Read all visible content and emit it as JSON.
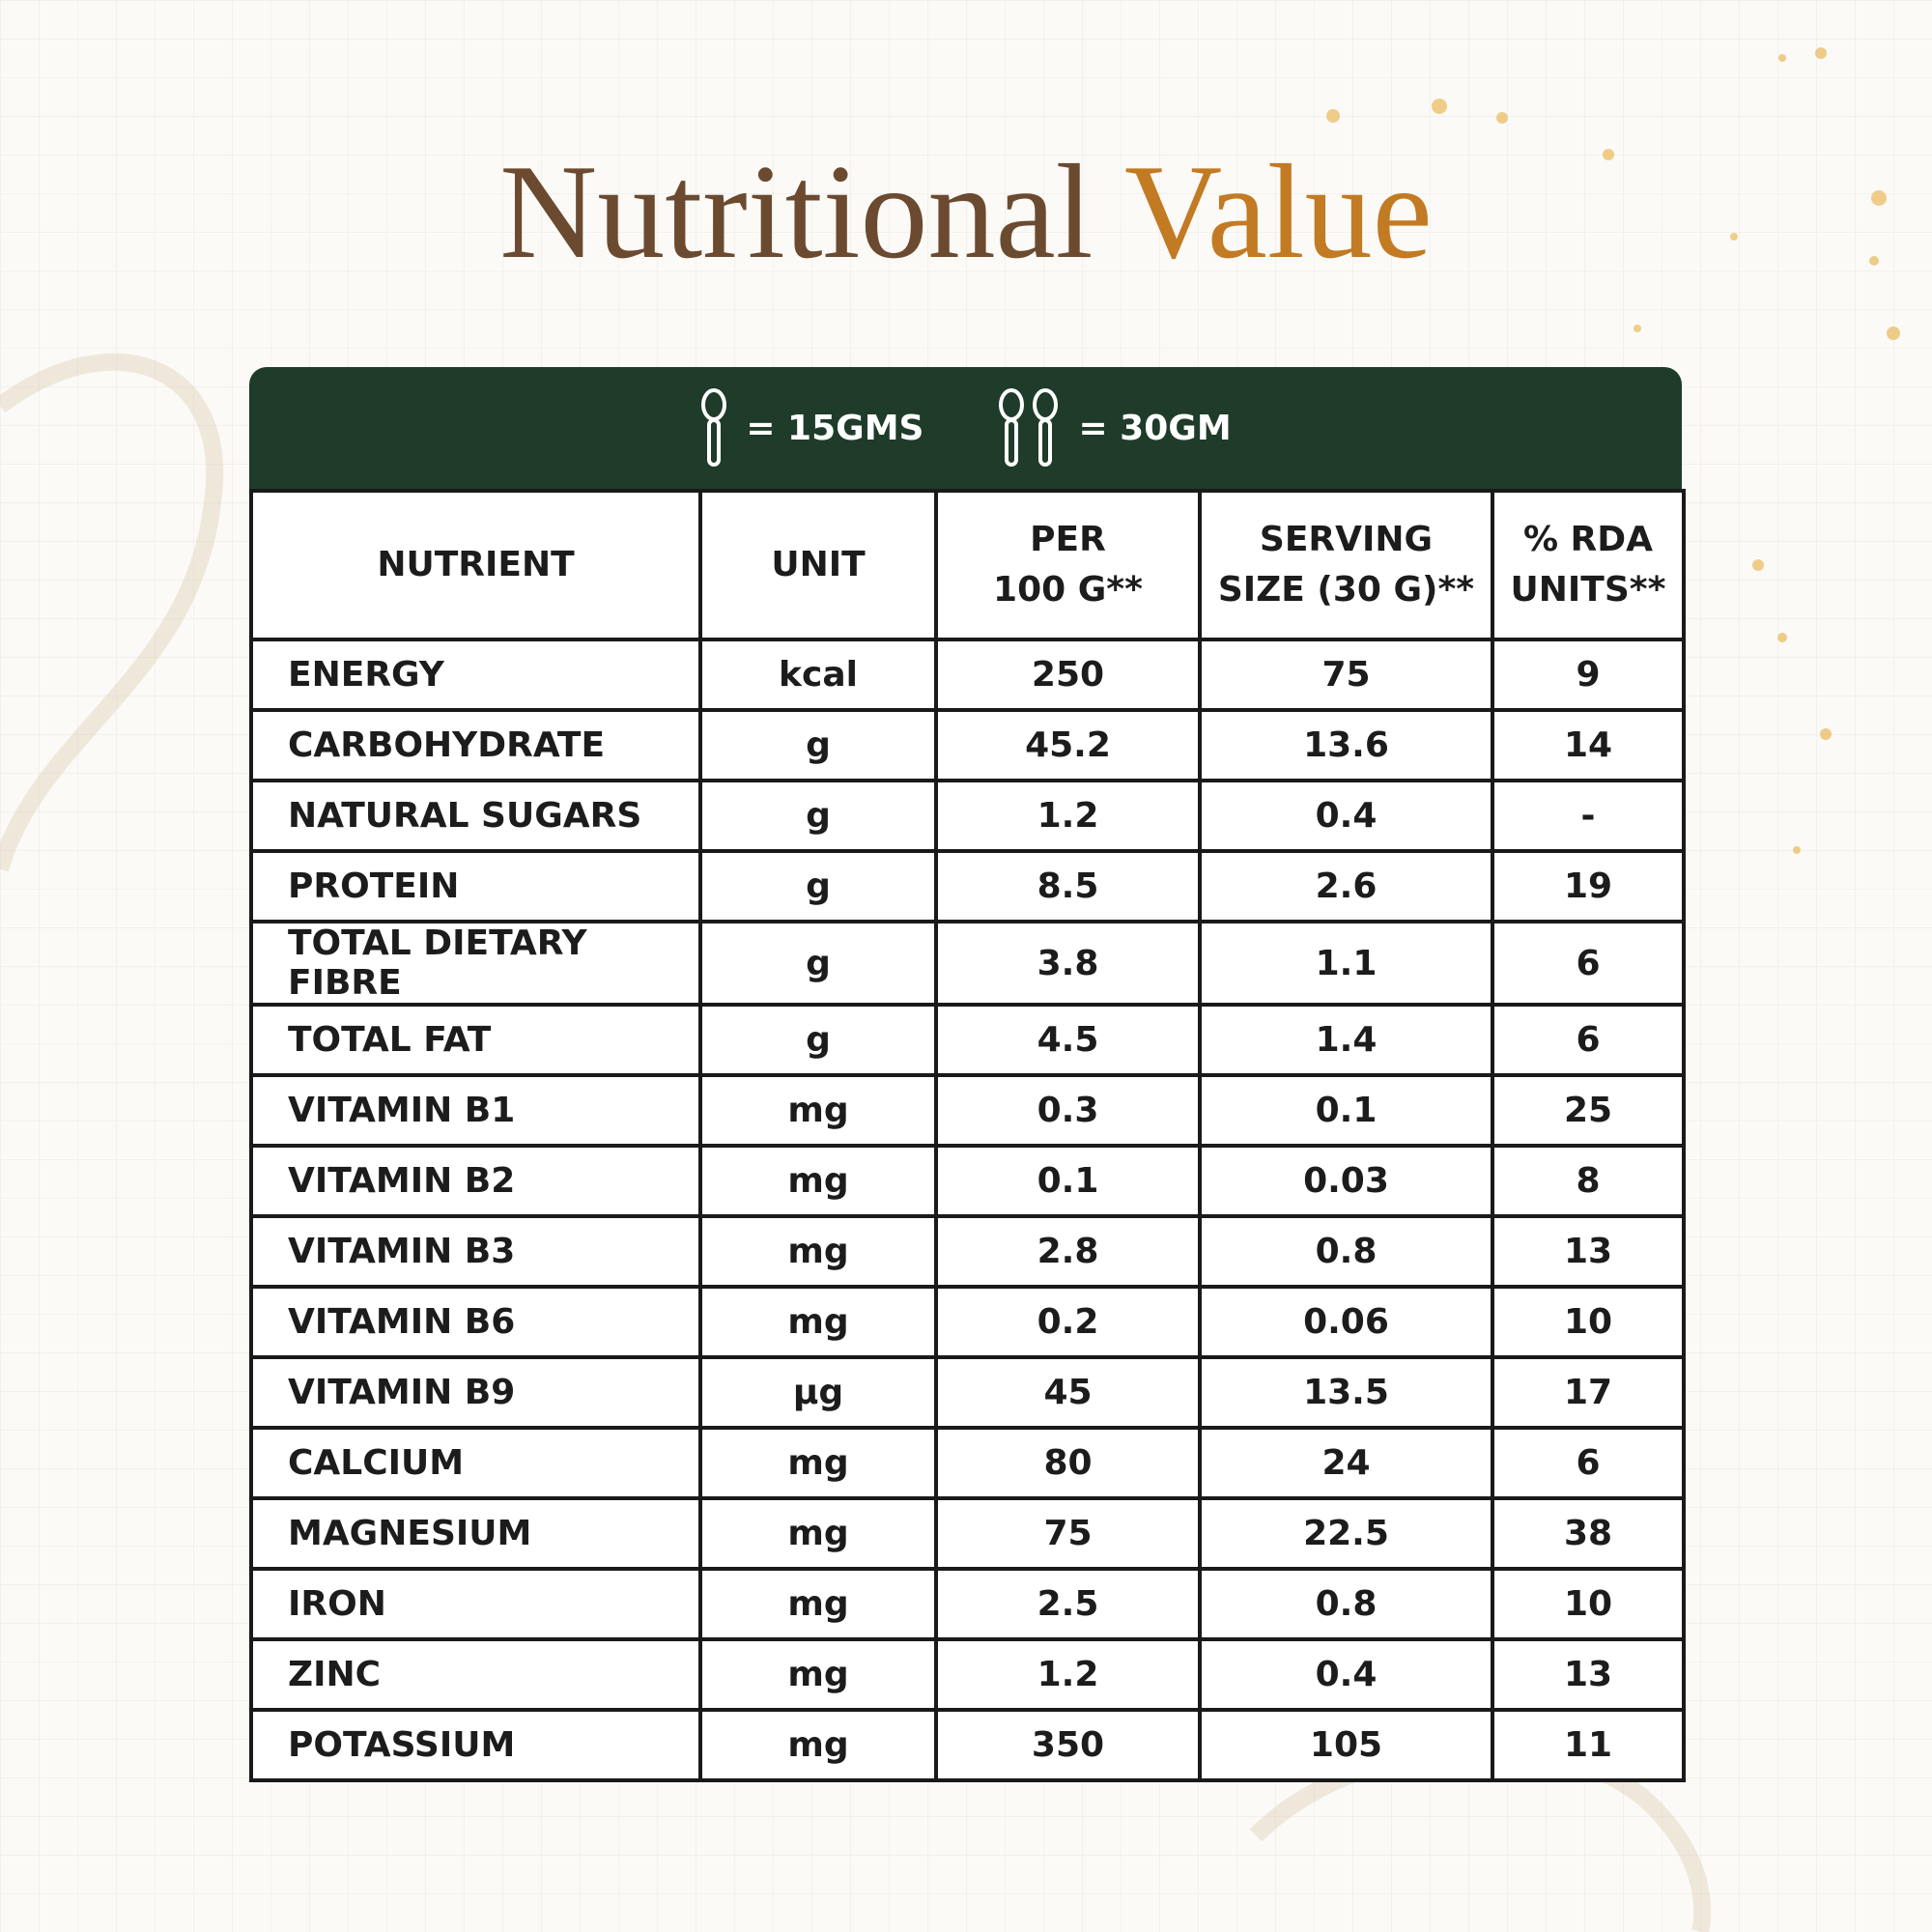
{
  "title": {
    "part1": "Nutritional",
    "part2": "Value"
  },
  "serving": {
    "one_spoon": "= 15GMS",
    "two_spoons": "= 30GM"
  },
  "table": {
    "headers": [
      "NUTRIENT",
      "UNIT",
      "PER\n100 G**",
      "SERVING\nSIZE (30 G)**",
      "% RDA\nUNITS**"
    ],
    "rows": [
      [
        "ENERGY",
        "kcal",
        "250",
        "75",
        "9"
      ],
      [
        "CARBOHYDRATE",
        "g",
        "45.2",
        "13.6",
        "14"
      ],
      [
        "NATURAL SUGARS",
        "g",
        "1.2",
        "0.4",
        "-"
      ],
      [
        "PROTEIN",
        "g",
        "8.5",
        "2.6",
        "19"
      ],
      [
        "TOTAL DIETARY FIBRE",
        "g",
        "3.8",
        "1.1",
        "6"
      ],
      [
        "TOTAL FAT",
        "g",
        "4.5",
        "1.4",
        "6"
      ],
      [
        "VITAMIN B1",
        "mg",
        "0.3",
        "0.1",
        "25"
      ],
      [
        "VITAMIN B2",
        "mg",
        "0.1",
        "0.03",
        "8"
      ],
      [
        "VITAMIN B3",
        "mg",
        "2.8",
        "0.8",
        "13"
      ],
      [
        "VITAMIN B6",
        "mg",
        "0.2",
        "0.06",
        "10"
      ],
      [
        "VITAMIN B9",
        "µg",
        "45",
        "13.5",
        "17"
      ],
      [
        "CALCIUM",
        "mg",
        "80",
        "24",
        "6"
      ],
      [
        "MAGNESIUM",
        "mg",
        "75",
        "22.5",
        "38"
      ],
      [
        "IRON",
        "mg",
        "2.5",
        "0.8",
        "10"
      ],
      [
        "ZINC",
        "mg",
        "1.2",
        "0.4",
        "13"
      ],
      [
        "POTASSIUM",
        "mg",
        "350",
        "105",
        "11"
      ]
    ]
  }
}
